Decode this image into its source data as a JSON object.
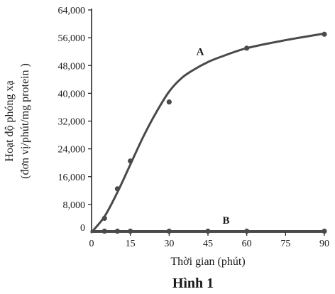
{
  "chart_data": {
    "type": "line",
    "title": "",
    "caption": "Hình 1",
    "xlabel": "Thời gian (phút)",
    "ylabel_line1": "Hoạt độ phóng xạ",
    "ylabel_line2": "(đơn vị/phút/mg protein )",
    "xlim": [
      0,
      90
    ],
    "ylim": [
      0,
      64000
    ],
    "x_ticks": [
      0,
      15,
      30,
      45,
      60,
      75,
      90
    ],
    "x_tick_labels": [
      "0",
      "15",
      "30",
      "45",
      "60",
      "75",
      "90"
    ],
    "y_ticks": [
      8000,
      16000,
      24000,
      32000,
      40000,
      48000,
      56000,
      64000
    ],
    "y_tick_labels": [
      "8,000",
      "16,000",
      "24,000",
      "32,000",
      "40,000",
      "48,000",
      "56,000",
      "64,000"
    ],
    "y_origin_label": "0",
    "grid": false,
    "series": [
      {
        "name": "A",
        "points": [
          {
            "x": 5,
            "y": 4000
          },
          {
            "x": 10,
            "y": 12500
          },
          {
            "x": 15,
            "y": 20500
          },
          {
            "x": 30,
            "y": 37500
          },
          {
            "x": 60,
            "y": 53000
          },
          {
            "x": 90,
            "y": 57000
          }
        ],
        "curve": [
          {
            "x": 0,
            "y": 0
          },
          {
            "x": 5,
            "y": 4500
          },
          {
            "x": 10,
            "y": 11500
          },
          {
            "x": 15,
            "y": 19500
          },
          {
            "x": 20,
            "y": 27500
          },
          {
            "x": 25,
            "y": 34500
          },
          {
            "x": 30,
            "y": 40500
          },
          {
            "x": 35,
            "y": 44500
          },
          {
            "x": 40,
            "y": 47000
          },
          {
            "x": 45,
            "y": 49000
          },
          {
            "x": 50,
            "y": 50500
          },
          {
            "x": 60,
            "y": 53000
          },
          {
            "x": 75,
            "y": 55300
          },
          {
            "x": 90,
            "y": 57200
          }
        ],
        "label_at": {
          "x": 42,
          "y": 51000
        }
      },
      {
        "name": "B",
        "points": [
          {
            "x": 5,
            "y": 300
          },
          {
            "x": 10,
            "y": 300
          },
          {
            "x": 15,
            "y": 300
          },
          {
            "x": 30,
            "y": 300
          },
          {
            "x": 45,
            "y": 300
          },
          {
            "x": 60,
            "y": 300
          },
          {
            "x": 90,
            "y": 300
          }
        ],
        "curve": [
          {
            "x": 0,
            "y": 300
          },
          {
            "x": 90,
            "y": 300
          }
        ],
        "label_at": {
          "x": 52,
          "y": 2500
        }
      }
    ]
  }
}
